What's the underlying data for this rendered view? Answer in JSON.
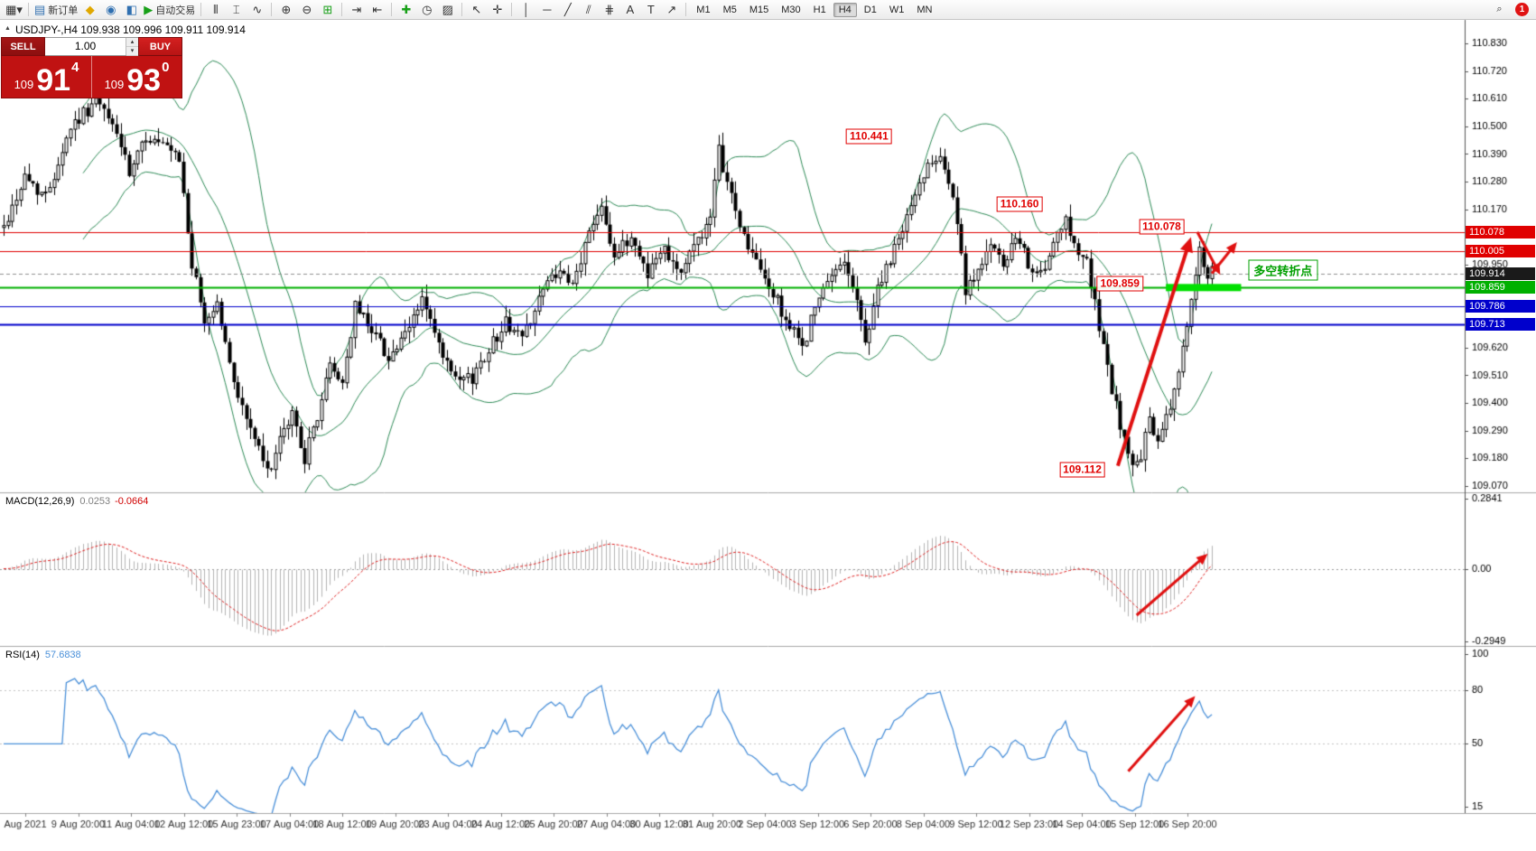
{
  "icons": {
    "volume_up": "▴",
    "volume_down": "▾",
    "search": "⌕"
  },
  "toolbar": {
    "items": [
      {
        "name": "chart-window-menu",
        "glyph": "▦▾"
      },
      {
        "sep": true
      },
      {
        "name": "new-order-button",
        "glyph": "▤",
        "label": "新订单",
        "color": "#2f6fb0"
      },
      {
        "name": "sound-button",
        "glyph": "◆",
        "color": "#e0a800"
      },
      {
        "name": "market-watch-button",
        "glyph": "◉",
        "color": "#2f6fb0"
      },
      {
        "name": "data-window-button",
        "glyph": "◧",
        "color": "#2f6fb0"
      },
      {
        "name": "auto-trading-button",
        "glyph": "▶",
        "label": "自动交易",
        "color": "#18a018"
      },
      {
        "sep": true
      },
      {
        "name": "bar-chart-button",
        "glyph": "⫴"
      },
      {
        "name": "candlestick-button",
        "glyph": "⌶"
      },
      {
        "name": "line-chart-button",
        "glyph": "∿"
      },
      {
        "sep": true
      },
      {
        "name": "zoom-in-button",
        "glyph": "⊕"
      },
      {
        "name": "zoom-out-button",
        "glyph": "⊖"
      },
      {
        "name": "tile-windows-button",
        "glyph": "⊞",
        "color": "#18a018"
      },
      {
        "sep": true
      },
      {
        "name": "auto-scroll-button",
        "glyph": "⇥"
      },
      {
        "name": "chart-shift-button",
        "glyph": "⇤"
      },
      {
        "sep": true
      },
      {
        "name": "indicators-button",
        "glyph": "✚",
        "color": "#18a018"
      },
      {
        "name": "periods-button",
        "glyph": "◷"
      },
      {
        "name": "templates-button",
        "glyph": "▨"
      },
      {
        "sep": true
      },
      {
        "name": "cursor-button",
        "glyph": "↖"
      },
      {
        "name": "crosshair-button",
        "glyph": "✛"
      },
      {
        "sep": true
      },
      {
        "name": "vertical-line-button",
        "glyph": "│"
      },
      {
        "name": "horizontal-line-button",
        "glyph": "─"
      },
      {
        "name": "trendline-button",
        "glyph": "╱"
      },
      {
        "name": "channel-button",
        "glyph": "⫽"
      },
      {
        "name": "fibonacci-button",
        "glyph": "⋕"
      },
      {
        "name": "text-button",
        "glyph": "A"
      },
      {
        "name": "label-button",
        "glyph": "T"
      },
      {
        "name": "arrows-button",
        "glyph": "↗"
      }
    ],
    "timeframes": [
      "M1",
      "M5",
      "M15",
      "M30",
      "H1",
      "H4",
      "D1",
      "W1",
      "MN"
    ],
    "active_timeframe": "H4",
    "notification_count": "1"
  },
  "chart": {
    "collapse_icon": "▲",
    "title": "USDJPY-,H4 109.938 109.996 109.911 109.914"
  },
  "trade_panel": {
    "sell_label": "SELL",
    "buy_label": "BUY",
    "volume": "1.00",
    "sell_small": "109",
    "sell_big": "91",
    "sell_sup": "4",
    "buy_small": "109",
    "buy_big": "93",
    "buy_sup": "0"
  },
  "chart_data": {
    "type": "candlestick",
    "symbol": "USDJPY-",
    "timeframe": "H4",
    "ohlc": {
      "open": 109.938,
      "high": 109.996,
      "low": 109.911,
      "close": 109.914
    },
    "num_candles": 290,
    "seed": 42,
    "spacing": 4.63,
    "ylim": [
      109.04,
      110.85
    ],
    "price_ticks": [
      "110.830",
      "110.720",
      "110.610",
      "110.500",
      "110.390",
      "110.280",
      "110.170",
      "110.060",
      "109.950",
      "109.840",
      "109.730",
      "109.620",
      "109.510",
      "109.400",
      "109.290",
      "109.180",
      "109.070"
    ],
    "waypoints": [
      [
        0,
        110.1
      ],
      [
        5,
        110.3
      ],
      [
        10,
        110.22
      ],
      [
        16,
        110.5
      ],
      [
        22,
        110.6
      ],
      [
        27,
        110.48
      ],
      [
        30,
        110.3
      ],
      [
        34,
        110.46
      ],
      [
        38,
        110.42
      ],
      [
        42,
        110.36
      ],
      [
        45,
        109.95
      ],
      [
        48,
        109.72
      ],
      [
        51,
        109.8
      ],
      [
        54,
        109.55
      ],
      [
        57,
        109.38
      ],
      [
        60,
        109.26
      ],
      [
        63,
        109.12
      ],
      [
        66,
        109.24
      ],
      [
        69,
        109.36
      ],
      [
        72,
        109.18
      ],
      [
        75,
        109.35
      ],
      [
        78,
        109.55
      ],
      [
        81,
        109.48
      ],
      [
        84,
        109.78
      ],
      [
        88,
        109.7
      ],
      [
        92,
        109.58
      ],
      [
        96,
        109.66
      ],
      [
        100,
        109.82
      ],
      [
        104,
        109.62
      ],
      [
        108,
        109.48
      ],
      [
        112,
        109.5
      ],
      [
        116,
        109.62
      ],
      [
        120,
        109.72
      ],
      [
        124,
        109.66
      ],
      [
        128,
        109.82
      ],
      [
        132,
        109.92
      ],
      [
        136,
        109.86
      ],
      [
        140,
        110.08
      ],
      [
        143,
        110.2
      ],
      [
        146,
        109.98
      ],
      [
        150,
        110.06
      ],
      [
        154,
        109.92
      ],
      [
        158,
        110.02
      ],
      [
        162,
        109.92
      ],
      [
        166,
        110.06
      ],
      [
        169,
        110.12
      ],
      [
        171,
        110.4
      ],
      [
        174,
        110.22
      ],
      [
        177,
        110.06
      ],
      [
        181,
        109.92
      ],
      [
        185,
        109.8
      ],
      [
        188,
        109.7
      ],
      [
        191,
        109.62
      ],
      [
        194,
        109.78
      ],
      [
        198,
        109.9
      ],
      [
        201,
        109.98
      ],
      [
        204,
        109.8
      ],
      [
        206,
        109.64
      ],
      [
        209,
        109.86
      ],
      [
        212,
        109.96
      ],
      [
        215,
        110.1
      ],
      [
        218,
        110.22
      ],
      [
        221,
        110.36
      ],
      [
        224,
        110.4
      ],
      [
        226,
        110.28
      ],
      [
        228,
        110.12
      ],
      [
        230,
        109.82
      ],
      [
        233,
        109.95
      ],
      [
        236,
        110.02
      ],
      [
        239,
        109.94
      ],
      [
        242,
        110.05
      ],
      [
        245,
        109.96
      ],
      [
        248,
        109.9
      ],
      [
        251,
        110.02
      ],
      [
        254,
        110.12
      ],
      [
        256,
        110.04
      ],
      [
        259,
        109.96
      ],
      [
        262,
        109.7
      ],
      [
        265,
        109.45
      ],
      [
        268,
        109.25
      ],
      [
        271,
        109.14
      ],
      [
        274,
        109.32
      ],
      [
        276,
        109.24
      ],
      [
        279,
        109.38
      ],
      [
        282,
        109.62
      ],
      [
        284,
        109.8
      ],
      [
        286,
        110.0
      ],
      [
        287,
        109.96
      ],
      [
        288,
        109.9
      ],
      [
        289,
        109.92
      ]
    ],
    "bollinger": {
      "period": 20,
      "deviations": 2,
      "color": "#2e8b57"
    },
    "hlines": [
      {
        "price": 110.078,
        "color": "#e00000",
        "width": 1
      },
      {
        "price": 110.005,
        "color": "#e00000",
        "width": 1
      },
      {
        "price": 109.914,
        "color": "#909090",
        "width": 1,
        "dash": true
      },
      {
        "price": 109.859,
        "color": "#00b000",
        "width": 2
      },
      {
        "price": 109.786,
        "color": "#0000cc",
        "width": 1
      },
      {
        "price": 109.713,
        "color": "#0000cc",
        "width": 2
      }
    ],
    "green_zone": {
      "price": 109.859,
      "i1": 278,
      "i2": 296,
      "color": "#00e000"
    },
    "axis_markers": [
      {
        "text": "110.078",
        "bg": "#e00000"
      },
      {
        "text": "110.005",
        "bg": "#e00000"
      },
      {
        "text": "109.914",
        "bg": "#1a1a1a"
      },
      {
        "text": "109.859",
        "bg": "#00b000"
      },
      {
        "text": "109.786",
        "bg": "#0000cc"
      },
      {
        "text": "109.713",
        "bg": "#0000cc"
      }
    ],
    "labels": [
      {
        "text": "110.441",
        "i": 207,
        "p": 110.46
      },
      {
        "text": "110.160",
        "i": 243,
        "p": 110.19
      },
      {
        "text": "110.078",
        "i": 277,
        "p": 110.1
      },
      {
        "text": "109.859",
        "i": 267,
        "p": 109.875
      },
      {
        "text": "109.112",
        "i": 258,
        "p": 109.135
      }
    ],
    "note": {
      "text": "多空转折点",
      "i": 306,
      "p": 109.93
    },
    "arrows_main": [
      {
        "i1": 266.5,
        "p1": 109.15,
        "i2": 284,
        "p2": 110.06,
        "w": 4
      },
      {
        "i1": 285.5,
        "p1": 110.08,
        "i2": 291,
        "p2": 109.91,
        "w": 3
      },
      {
        "i1": 289,
        "p1": 109.915,
        "i2": 295,
        "p2": 110.04,
        "w": 3
      }
    ],
    "macd": {
      "label": "MACD(12,26,9)",
      "value_main": "0.0253",
      "value_signal": "-0.0664",
      "fast": 12,
      "slow": 26,
      "signal": 9,
      "max": 0.2841,
      "min": -0.2949,
      "axis": [
        "0.2841",
        "0.00",
        "-0.2949"
      ],
      "arrow": {
        "i1": 271,
        "f1": 0.8,
        "i2": 288,
        "f2": 0.4
      }
    },
    "rsi": {
      "label": "RSI(14)",
      "value": "57.6838",
      "period": 14,
      "ticks": [
        100,
        80,
        50,
        15
      ],
      "levels": [
        80,
        50
      ],
      "arrow": {
        "i1": 269,
        "f1": 0.75,
        "i2": 285,
        "f2": 0.3
      }
    },
    "time_labels": [
      "Aug 2021",
      "9 Aug 20:00",
      "11 Aug 04:00",
      "12 Aug 12:00",
      "15 Aug 23:00",
      "17 Aug 04:00",
      "18 Aug 12:00",
      "19 Aug 20:00",
      "23 Aug 04:00",
      "24 Aug 12:00",
      "25 Aug 20:00",
      "27 Aug 04:00",
      "30 Aug 12:00",
      "31 Aug 20:00",
      "2 Sep 04:00",
      "3 Sep 12:00",
      "6 Sep 20:00",
      "8 Sep 04:00",
      "9 Sep 12:00",
      "12 Sep 23:00",
      "14 Sep 04:00",
      "15 Sep 12:00",
      "16 Sep 20:00"
    ]
  }
}
